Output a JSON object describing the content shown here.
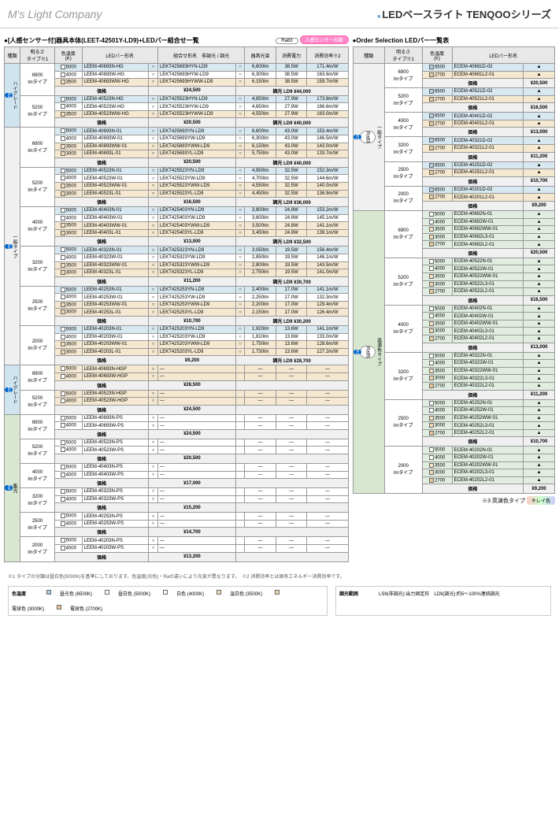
{
  "brand": "M's Light Company",
  "title_bar": "■",
  "title": "LEDベースライト TENQOOシリーズ",
  "left_section": "●[人感センサー付]器具本体(LEET-42501Y-LD9)+LEDバー組合せ一覧",
  "ra_badge": "Ra83",
  "sensor_badge": "人感センサー内蔵",
  "right_section": "●Order Selection LEDバー一覧表",
  "headers": {
    "kind": "種類",
    "bright": "明るさ\nタイプ※1",
    "temp": "色温度\n(K)",
    "bar": "LEDバー形名",
    "combo": "組合せ形名　非調光 / 調光",
    "lumen": "器具光束",
    "power": "消費電力",
    "eff": "消費効率※2"
  },
  "vert_labels": {
    "hg": "ハイグレード",
    "gen": "一般タイプ",
    "hc": "高演色タイプ",
    "shu": "集光"
  },
  "ez": "ez",
  "left_rows": [
    {
      "v": "hg",
      "b": "6900\nlmタイプ",
      "rows": [
        [
          "5000",
          "LEEM-40693N-HG",
          "○",
          "LEKT425693HYN-LD9",
          "○",
          "6,600lm",
          "38.5W",
          "171.4m/W",
          "blue"
        ],
        [
          "4000",
          "LEEM-40693W-HG",
          "○",
          "LEKT425693HYW-LD9",
          "○",
          "6,300lm",
          "38.5W",
          "163.6m/W",
          ""
        ],
        [
          "3500",
          "LEEM-40693WW-HG",
          "○",
          "LEKT425693HYWW-LD9",
          "○",
          "6,150lm",
          "38.5W",
          "159.7m/W",
          "beige"
        ]
      ],
      "price": "¥24,500",
      "dim": "調光 LD9 ¥44,000"
    },
    {
      "v": "hg",
      "b": "5200\nlmタイプ",
      "rows": [
        [
          "5000",
          "LEEM-40523N-HG",
          "○",
          "LEKT425523HYN-LD9",
          "○",
          "4,850lm",
          "27.9W",
          "173.8m/W",
          "blue"
        ],
        [
          "4000",
          "LEEM-40523W-HG",
          "○",
          "LEKT425523HYW-LD9",
          "○",
          "4,650lm",
          "27.9W",
          "166.6m/W",
          ""
        ],
        [
          "3500",
          "LEEM-40523WW-HG",
          "○",
          "LEKT425523HYWW-LD9",
          "○",
          "4,550lm",
          "27.9W",
          "163.0m/W",
          "beige"
        ]
      ],
      "price": "¥20,500",
      "dim": "調光 LD9 ¥40,000"
    },
    {
      "v": "gen",
      "b": "6900\nlmタイプ",
      "rows": [
        [
          "5000",
          "LEEM-40693N-01",
          "○",
          "LEKT425693YN-LD9",
          "○",
          "6,600lm",
          "43.0W",
          "153.4m/W",
          "blue"
        ],
        [
          "4000",
          "LEEM-40693W-01",
          "○",
          "LEKT425693YW-LD9",
          "○",
          "6,300lm",
          "43.0W",
          "146.5m/W",
          ""
        ],
        [
          "3500",
          "LEEM-40693WW-01",
          "○",
          "LEKT425693YWW-LD9",
          "○",
          "6,150lm",
          "43.0W",
          "143.0m/W",
          "beige"
        ],
        [
          "3000",
          "LEEM-40693L-01",
          "○",
          "LEKT425693YL-LD9",
          "○",
          "5,750lm",
          "43.0W",
          "133.7m/W",
          "beige"
        ]
      ],
      "price": "¥20,500",
      "dim": "調光 LD9 ¥40,000"
    },
    {
      "v": "gen",
      "b": "5200\nlmタイプ",
      "rows": [
        [
          "5000",
          "LEEM-40523N-01",
          "○",
          "LEKT425523YN-LD9",
          "○",
          "4,950lm",
          "32.5W",
          "152.3m/W",
          "blue"
        ],
        [
          "4000",
          "LEEM-40523W-01",
          "○",
          "LEKT425523YW-LD9",
          "○",
          "4,700lm",
          "32.5W",
          "144.6m/W",
          ""
        ],
        [
          "3500",
          "LEEM-40523WW-01",
          "○",
          "LEKT425523YWW-LD9",
          "○",
          "4,550lm",
          "32.5W",
          "140.0m/W",
          "beige"
        ],
        [
          "3000",
          "LEEM-40523L-01",
          "○",
          "LEKT425523YL-LD9",
          "○",
          "4,450lm",
          "32.5W",
          "136.9m/W",
          "beige"
        ]
      ],
      "price": "¥16,500",
      "dim": "調光 LD9 ¥36,000"
    },
    {
      "v": "gen",
      "b": "4000\nlmタイプ",
      "rows": [
        [
          "5000",
          "LEEM-40403N-01",
          "○",
          "LEKT425403YN-LD9",
          "○",
          "3,800lm",
          "24.8W",
          "153.2m/W",
          "blue"
        ],
        [
          "4000",
          "LEEM-40403W-01",
          "○",
          "LEKT425403YW-LD9",
          "○",
          "3,600lm",
          "24.8W",
          "145.1m/W",
          ""
        ],
        [
          "3500",
          "LEEM-40403WW-01",
          "○",
          "LEKT425403YWW-LD9",
          "○",
          "3,500lm",
          "24.8W",
          "141.1m/W",
          "beige"
        ],
        [
          "3000",
          "LEEM-40403L-01",
          "○",
          "LEKT425403YL-LD9",
          "○",
          "3,450lm",
          "24.8W",
          "139.1m/W",
          "beige"
        ]
      ],
      "price": "¥13,000",
      "dim": "調光 LD9 ¥32,500"
    },
    {
      "v": "gen",
      "b": "3200\nlmタイプ",
      "rows": [
        [
          "5000",
          "LEEM-40323N-01",
          "○",
          "LEKT425323YN-LD9",
          "○",
          "3,050lm",
          "19.5W",
          "156.4m/W",
          "blue"
        ],
        [
          "4000",
          "LEEM-40323W-01",
          "○",
          "LEKT425323YW-LD9",
          "○",
          "2,850lm",
          "19.5W",
          "146.1m/W",
          ""
        ],
        [
          "3500",
          "LEEM-40323WW-01",
          "○",
          "LEKT425323YWW-LD9",
          "○",
          "2,800lm",
          "19.5W",
          "143.5m/W",
          "beige"
        ],
        [
          "3000",
          "LEEM-40323L-01",
          "○",
          "LEKT425323YL-LD9",
          "○",
          "2,750lm",
          "19.5W",
          "141.0m/W",
          "beige"
        ]
      ],
      "price": "¥11,200",
      "dim": "調光 LD9 ¥30,700"
    },
    {
      "v": "gen",
      "b": "2500\nlmタイプ",
      "rows": [
        [
          "5000",
          "LEEM-40253N-01",
          "○",
          "LEKT425253YN-LD9",
          "○",
          "2,400lm",
          "17.0W",
          "141.1m/W",
          "blue"
        ],
        [
          "4000",
          "LEEM-40253W-01",
          "○",
          "LEKT425253YW-LD9",
          "○",
          "2,250lm",
          "17.0W",
          "132.3m/W",
          ""
        ],
        [
          "3500",
          "LEEM-40253WW-01",
          "○",
          "LEKT425253YWW-LD9",
          "○",
          "2,200lm",
          "17.0W",
          "129.4m/W",
          "beige"
        ],
        [
          "3000",
          "LEEM-40253L-01",
          "○",
          "LEKT425253YL-LD9",
          "○",
          "2,150lm",
          "17.0W",
          "126.4m/W",
          "beige"
        ]
      ],
      "price": "¥10,700",
      "dim": "調光 LD9 ¥30,200"
    },
    {
      "v": "gen",
      "b": "2000\nlmタイプ",
      "rows": [
        [
          "5000",
          "LEEM-40203N-01",
          "○",
          "LEKT425203YN-LD9",
          "○",
          "1,920lm",
          "13.6W",
          "141.1m/W",
          "blue"
        ],
        [
          "4000",
          "LEEM-40203W-01",
          "○",
          "LEKT425203YW-LD9",
          "○",
          "1,810lm",
          "13.6W",
          "133.0m/W",
          ""
        ],
        [
          "3500",
          "LEEM-40203WW-01",
          "○",
          "LEKT425203YWW-LD9",
          "○",
          "1,750lm",
          "13.6W",
          "128.6m/W",
          "beige"
        ],
        [
          "3000",
          "LEEM-40203L-01",
          "○",
          "LEKT425203YL-LD9",
          "○",
          "1,730lm",
          "13.6W",
          "127.2m/W",
          "beige"
        ]
      ],
      "price": "¥9,200",
      "dim": "調光 LD9 ¥28,700"
    },
    {
      "v": "hg2",
      "b": "6900\nlmタイプ",
      "rows": [
        [
          "5000",
          "LEEM-40693N-HGP",
          "○",
          "—",
          "",
          "—",
          "—",
          "—",
          "beige"
        ],
        [
          "4000",
          "LEEM-40693W-HGP",
          "○",
          "—",
          "",
          "—",
          "—",
          "—",
          "beige"
        ]
      ],
      "price": "¥28,500",
      "dim": ""
    },
    {
      "v": "hg2",
      "b": "5200\nlmタイプ",
      "rows": [
        [
          "5000",
          "LEEM-40523N-HGP",
          "○",
          "—",
          "",
          "—",
          "—",
          "—",
          "beige"
        ],
        [
          "4000",
          "LEEM-40523W-HGP",
          "○",
          "—",
          "",
          "—",
          "—",
          "—",
          "beige"
        ]
      ],
      "price": "¥24,500",
      "dim": ""
    },
    {
      "v": "shu",
      "b": "6900\nlmタイプ",
      "rows": [
        [
          "5000",
          "LEEM-40693N-PS",
          "○",
          "—",
          "",
          "—",
          "—",
          "—",
          ""
        ],
        [
          "4000",
          "LEEM-40693W-PS",
          "○",
          "—",
          "",
          "—",
          "—",
          "—",
          ""
        ]
      ],
      "price": "¥24,500",
      "dim": ""
    },
    {
      "v": "shu",
      "b": "5200\nlmタイプ",
      "rows": [
        [
          "5000",
          "LEEM-40523N-PS",
          "○",
          "—",
          "",
          "—",
          "—",
          "—",
          ""
        ],
        [
          "4000",
          "LEEM-40523W-PS",
          "○",
          "—",
          "",
          "—",
          "—",
          "—",
          ""
        ]
      ],
      "price": "¥20,500",
      "dim": ""
    },
    {
      "v": "shu",
      "b": "4000\nlmタイプ",
      "rows": [
        [
          "5000",
          "LEEM-40403N-PS",
          "○",
          "—",
          "",
          "—",
          "—",
          "—",
          ""
        ],
        [
          "4000",
          "LEEM-40403W-PS",
          "○",
          "—",
          "",
          "—",
          "—",
          "—",
          ""
        ]
      ],
      "price": "¥17,000",
      "dim": ""
    },
    {
      "v": "shu",
      "b": "3200\nlmタイプ",
      "rows": [
        [
          "5000",
          "LEEM-40323N-PS",
          "○",
          "—",
          "",
          "—",
          "—",
          "—",
          ""
        ],
        [
          "4000",
          "LEEM-40323W-PS",
          "○",
          "—",
          "",
          "—",
          "—",
          "—",
          ""
        ]
      ],
      "price": "¥15,200",
      "dim": ""
    },
    {
      "v": "shu",
      "b": "2500\nlmタイプ",
      "rows": [
        [
          "5000",
          "LEEM-40253N-PS",
          "○",
          "—",
          "",
          "—",
          "—",
          "—",
          ""
        ],
        [
          "4000",
          "LEEM-40253W-PS",
          "○",
          "—",
          "",
          "—",
          "—",
          "—",
          ""
        ]
      ],
      "price": "¥14,700",
      "dim": ""
    },
    {
      "v": "shu",
      "b": "2000\nlmタイプ",
      "rows": [
        [
          "5000",
          "LEEM-40203N-PS",
          "○",
          "—",
          "",
          "—",
          "—",
          "—",
          ""
        ],
        [
          "4000",
          "LEEM-40203W-PS",
          "○",
          "—",
          "",
          "—",
          "—",
          "—",
          ""
        ]
      ],
      "price": "¥13,200",
      "dim": ""
    }
  ],
  "right_rows": [
    {
      "v": "gen",
      "ra": "Ra83",
      "b": "6900\nlmタイプ",
      "rows": [
        [
          "6500",
          "ECEM-40691D-02",
          "▲",
          "blue"
        ],
        [
          "2700",
          "ECEM-40691L2-01",
          "▲",
          "beige"
        ]
      ],
      "price": "¥20,500"
    },
    {
      "v": "gen",
      "b": "5200\nlmタイプ",
      "rows": [
        [
          "6500",
          "ECEM-40521D-02",
          "▲",
          "blue"
        ],
        [
          "2700",
          "ECEM-40521L2-01",
          "▲",
          "beige"
        ]
      ],
      "price": "¥16,500"
    },
    {
      "v": "gen",
      "b": "4000\nlmタイプ",
      "rows": [
        [
          "6500",
          "ECEM-40401D-02",
          "▲",
          "blue"
        ],
        [
          "2700",
          "ECEM-40401L2-01",
          "▲",
          "beige"
        ]
      ],
      "price": "¥13,000"
    },
    {
      "v": "gen",
      "b": "3200\nlmタイプ",
      "rows": [
        [
          "6500",
          "ECEM-40321D-02",
          "▲",
          "blue"
        ],
        [
          "2700",
          "ECEM-40321L2-01",
          "▲",
          "beige"
        ]
      ],
      "price": "¥11,200"
    },
    {
      "v": "gen",
      "b": "2500\nlmタイプ",
      "rows": [
        [
          "6500",
          "ECEM-40251D-02",
          "▲",
          "blue"
        ],
        [
          "2700",
          "ECEM-40251L2-01",
          "▲",
          "beige"
        ]
      ],
      "price": "¥10,700"
    },
    {
      "v": "gen",
      "b": "2000\nlmタイプ",
      "rows": [
        [
          "6500",
          "ECEM-40201D-02",
          "▲",
          "blue"
        ],
        [
          "2700",
          "ECEM-40201L2-01",
          "▲",
          "beige"
        ]
      ],
      "price": "¥9,200"
    },
    {
      "v": "hc",
      "ra": "Ra95",
      "b": "6900\nlmタイプ",
      "rows": [
        [
          "5000",
          "ECEM-40692N-01",
          "▲",
          "green"
        ],
        [
          "4000",
          "ECEM-40692W-01",
          "▲",
          "green"
        ],
        [
          "3500",
          "ECEM-40692WW-01",
          "▲",
          "green"
        ],
        [
          "3000",
          "ECEM-40692L3-01",
          "▲",
          "green"
        ],
        [
          "2700",
          "ECEM-40692L2-01",
          "▲",
          "green"
        ]
      ],
      "price": "¥20,500"
    },
    {
      "v": "hc",
      "b": "5200\nlmタイプ",
      "rows": [
        [
          "5000",
          "ECEM-40522N-01",
          "▲",
          "green"
        ],
        [
          "4000",
          "ECEM-40522W-01",
          "▲",
          "green"
        ],
        [
          "3500",
          "ECEM-40522WW-01",
          "▲",
          "green"
        ],
        [
          "3000",
          "ECEM-40522L3-01",
          "▲",
          "green"
        ],
        [
          "2700",
          "ECEM-40522L2-01",
          "▲",
          "green"
        ]
      ],
      "price": "¥16,500"
    },
    {
      "v": "hc",
      "b": "4000\nlmタイプ",
      "rows": [
        [
          "5000",
          "ECEM-40402N-01",
          "▲",
          "green"
        ],
        [
          "4000",
          "ECEM-40402W-01",
          "▲",
          "green"
        ],
        [
          "3500",
          "ECEM-40402WW-01",
          "▲",
          "green"
        ],
        [
          "3000",
          "ECEM-40402L3-01",
          "▲",
          "green"
        ],
        [
          "2700",
          "ECEM-40402L2-01",
          "▲",
          "green"
        ]
      ],
      "price": "¥13,000"
    },
    {
      "v": "hc",
      "b": "3200\nlmタイプ",
      "rows": [
        [
          "5000",
          "ECEM-40322N-01",
          "▲",
          "green"
        ],
        [
          "4000",
          "ECEM-40322W-01",
          "▲",
          "green"
        ],
        [
          "3500",
          "ECEM-40322WW-01",
          "▲",
          "green"
        ],
        [
          "3000",
          "ECEM-40322L3-01",
          "▲",
          "green"
        ],
        [
          "2700",
          "ECEM-40322L2-01",
          "▲",
          "green"
        ]
      ],
      "price": "¥11,200"
    },
    {
      "v": "hc",
      "b": "2500\nlmタイプ",
      "rows": [
        [
          "5000",
          "ECEM-40252N-01",
          "▲",
          "green"
        ],
        [
          "4000",
          "ECEM-40252W-01",
          "▲",
          "green"
        ],
        [
          "3500",
          "ECEM-40252WW-01",
          "▲",
          "green"
        ],
        [
          "3000",
          "ECEM-40252L3-01",
          "▲",
          "green"
        ],
        [
          "2700",
          "ECEM-40252L2-01",
          "▲",
          "green"
        ]
      ],
      "price": "¥10,700"
    },
    {
      "v": "hc",
      "b": "2000\nlmタイプ",
      "rows": [
        [
          "5000",
          "ECEM-40202N-01",
          "▲",
          "green"
        ],
        [
          "4000",
          "ECEM-40202W-01",
          "▲",
          "green"
        ],
        [
          "3500",
          "ECEM-40202WW-01",
          "▲",
          "green"
        ],
        [
          "3000",
          "ECEM-40202L3-01",
          "▲",
          "green"
        ],
        [
          "2700",
          "ECEM-40202L2-01",
          "▲",
          "green"
        ]
      ],
      "price": "¥9,200"
    }
  ],
  "note3": "※3 高演色タイプ",
  "kirei": "キレイ色",
  "note1": "※1 タイプの分類は昼白色(5000K)を基準にしております。色温度(光色)・Raの違いにより光束が異なります。　※2 消費効率とは固有エネルギー消費効率です。",
  "legend_title": "色温度",
  "legend": [
    [
      "6500",
      "昼光色 (6500K)"
    ],
    [
      "5000",
      "昼白色 (5000K)"
    ],
    [
      "4000",
      "白色 (4000K)"
    ],
    [
      "3500",
      "温白色 (3500K)"
    ],
    [
      "3000",
      "電球色 (3000K)"
    ],
    [
      "2700",
      "電球色 (2700K)"
    ]
  ],
  "dim_title": "調光範囲",
  "dim_text": "LS9(非調光):出力固定形　LD9(調光):約5〜100%連続調光",
  "price_label": "価格"
}
